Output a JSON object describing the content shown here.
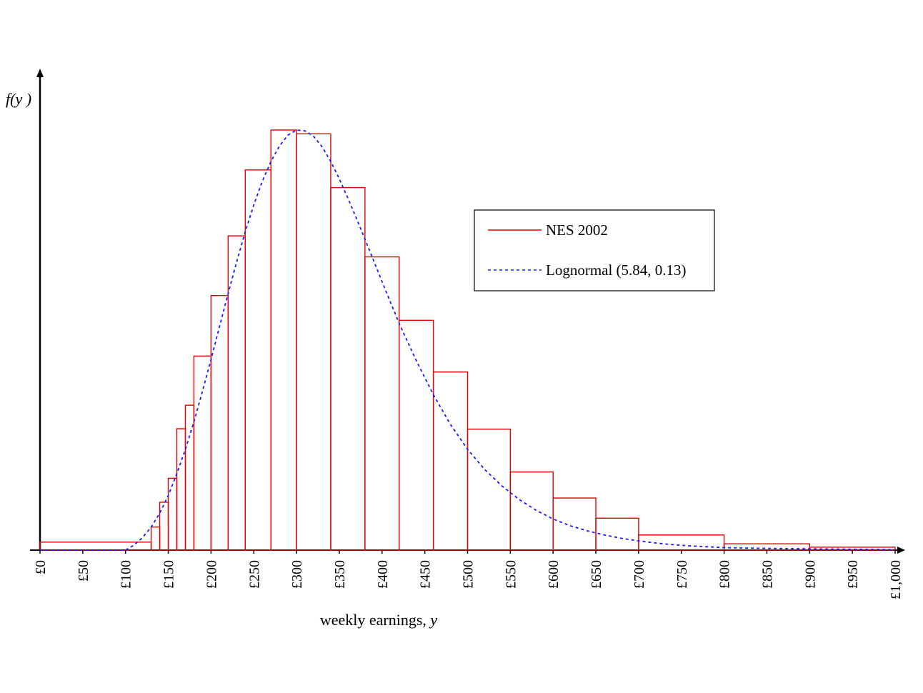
{
  "chart_data": {
    "type": "bar",
    "title": "",
    "xlabel": "weekly earnings, ",
    "xlabel_var": "y",
    "ylabel": "f(y )",
    "xlim": [
      0,
      1000
    ],
    "ylim": [
      0,
      1
    ],
    "grid": false,
    "legend_position": "top-right",
    "x_ticks": [
      "£0",
      "£50",
      "£100",
      "£150",
      "£200",
      "£250",
      "£300",
      "£350",
      "£400",
      "£450",
      "£500",
      "£550",
      "£600",
      "£650",
      "£700",
      "£750",
      "£800",
      "£850",
      "£900",
      "£950",
      "£1,000"
    ],
    "series": [
      {
        "name": "NES 2002",
        "kind": "histogram",
        "color": "#e00000",
        "bins": [
          {
            "from": 0,
            "to": 130,
            "value": 0.019
          },
          {
            "from": 130,
            "to": 140,
            "value": 0.055
          },
          {
            "from": 140,
            "to": 150,
            "value": 0.114
          },
          {
            "from": 150,
            "to": 160,
            "value": 0.171
          },
          {
            "from": 160,
            "to": 170,
            "value": 0.289
          },
          {
            "from": 170,
            "to": 180,
            "value": 0.345
          },
          {
            "from": 180,
            "to": 200,
            "value": 0.462
          },
          {
            "from": 200,
            "to": 220,
            "value": 0.606
          },
          {
            "from": 220,
            "to": 240,
            "value": 0.748
          },
          {
            "from": 240,
            "to": 270,
            "value": 0.905
          },
          {
            "from": 270,
            "to": 300,
            "value": 1.0
          },
          {
            "from": 300,
            "to": 340,
            "value": 0.991
          },
          {
            "from": 340,
            "to": 380,
            "value": 0.863
          },
          {
            "from": 380,
            "to": 420,
            "value": 0.698
          },
          {
            "from": 420,
            "to": 460,
            "value": 0.547
          },
          {
            "from": 460,
            "to": 500,
            "value": 0.424
          },
          {
            "from": 500,
            "to": 550,
            "value": 0.288
          },
          {
            "from": 550,
            "to": 600,
            "value": 0.186
          },
          {
            "from": 600,
            "to": 650,
            "value": 0.124
          },
          {
            "from": 650,
            "to": 700,
            "value": 0.076
          },
          {
            "from": 700,
            "to": 800,
            "value": 0.036
          },
          {
            "from": 800,
            "to": 900,
            "value": 0.015
          },
          {
            "from": 900,
            "to": 1000,
            "value": 0.007
          }
        ]
      },
      {
        "name": "Lognormal (5.84, 0.13)",
        "kind": "curve",
        "color": "#1a1aff",
        "x": [
          0,
          50,
          80,
          100,
          110,
          120,
          130,
          140,
          150,
          160,
          170,
          180,
          190,
          200,
          210,
          220,
          230,
          240,
          250,
          260,
          270,
          280,
          290,
          300,
          310,
          320,
          330,
          340,
          350,
          360,
          370,
          380,
          390,
          400,
          420,
          440,
          460,
          480,
          500,
          520,
          540,
          560,
          580,
          600,
          620,
          640,
          660,
          680,
          700,
          720,
          740,
          760,
          780,
          800,
          850,
          900,
          950,
          1000
        ],
        "y": [
          0,
          0,
          0,
          0,
          0.012,
          0.03,
          0.055,
          0.088,
          0.13,
          0.182,
          0.24,
          0.306,
          0.378,
          0.454,
          0.533,
          0.611,
          0.686,
          0.758,
          0.822,
          0.878,
          0.925,
          0.962,
          0.988,
          1.0,
          0.998,
          0.985,
          0.96,
          0.925,
          0.884,
          0.838,
          0.79,
          0.74,
          0.69,
          0.639,
          0.54,
          0.451,
          0.37,
          0.299,
          0.24,
          0.192,
          0.153,
          0.121,
          0.095,
          0.074,
          0.058,
          0.046,
          0.036,
          0.028,
          0.022,
          0.017,
          0.013,
          0.01,
          0.008,
          0.006,
          0.004,
          0.003,
          0.002,
          0.001
        ]
      }
    ]
  }
}
